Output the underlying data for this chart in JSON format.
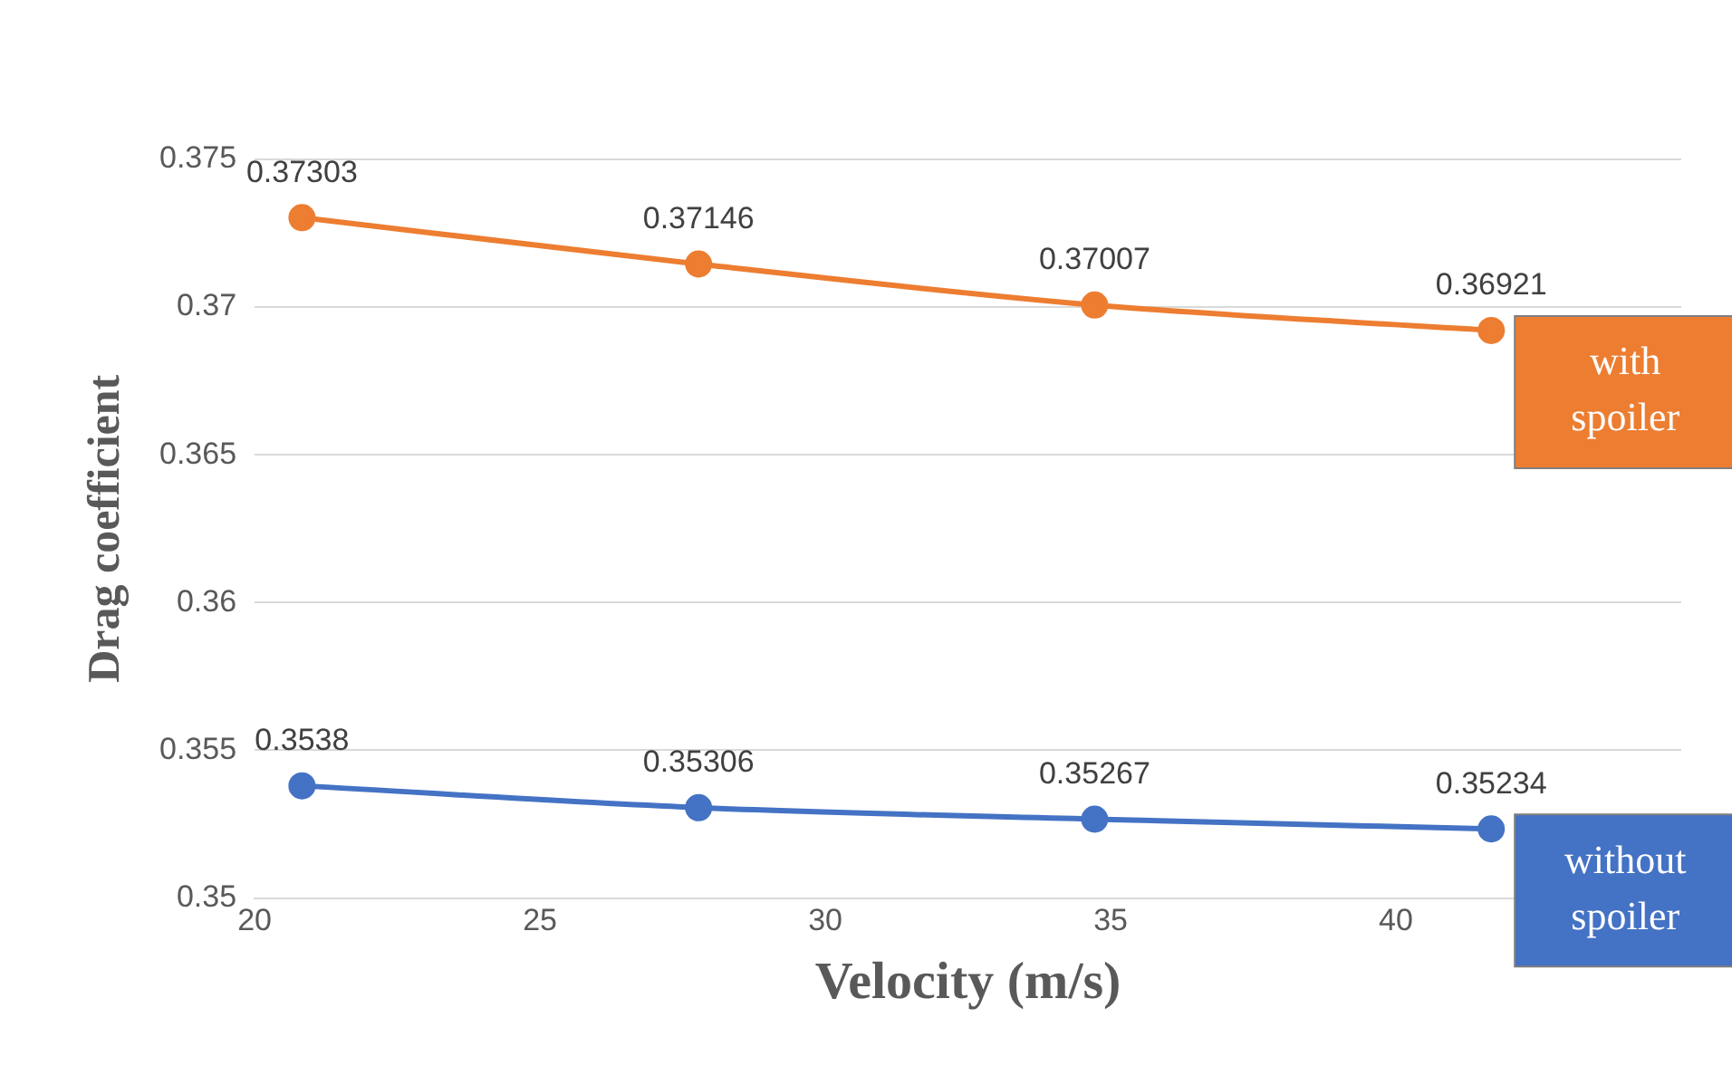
{
  "chart_data": {
    "type": "line",
    "xlabel": "Velocity (m/s)",
    "ylabel": "Drag coefficient",
    "x": [
      20.83,
      27.78,
      34.72,
      41.67
    ],
    "series": [
      {
        "name": "with spoiler",
        "color": "#ed7d31",
        "values": [
          0.37303,
          0.37146,
          0.37007,
          0.36921
        ]
      },
      {
        "name": "without spoiler",
        "color": "#4472c4",
        "values": [
          0.3538,
          0.35306,
          0.35267,
          0.35234
        ]
      }
    ],
    "xlim": [
      20,
      45
    ],
    "xticks": [
      20,
      25,
      30,
      35,
      40
    ],
    "ylim": [
      0.35,
      0.375
    ],
    "yticks": [
      0.35,
      0.355,
      0.36,
      0.365,
      0.37,
      0.375
    ],
    "grid": "y",
    "legend": false,
    "marker": "circle",
    "line_style": "solid",
    "data_labels": true
  }
}
